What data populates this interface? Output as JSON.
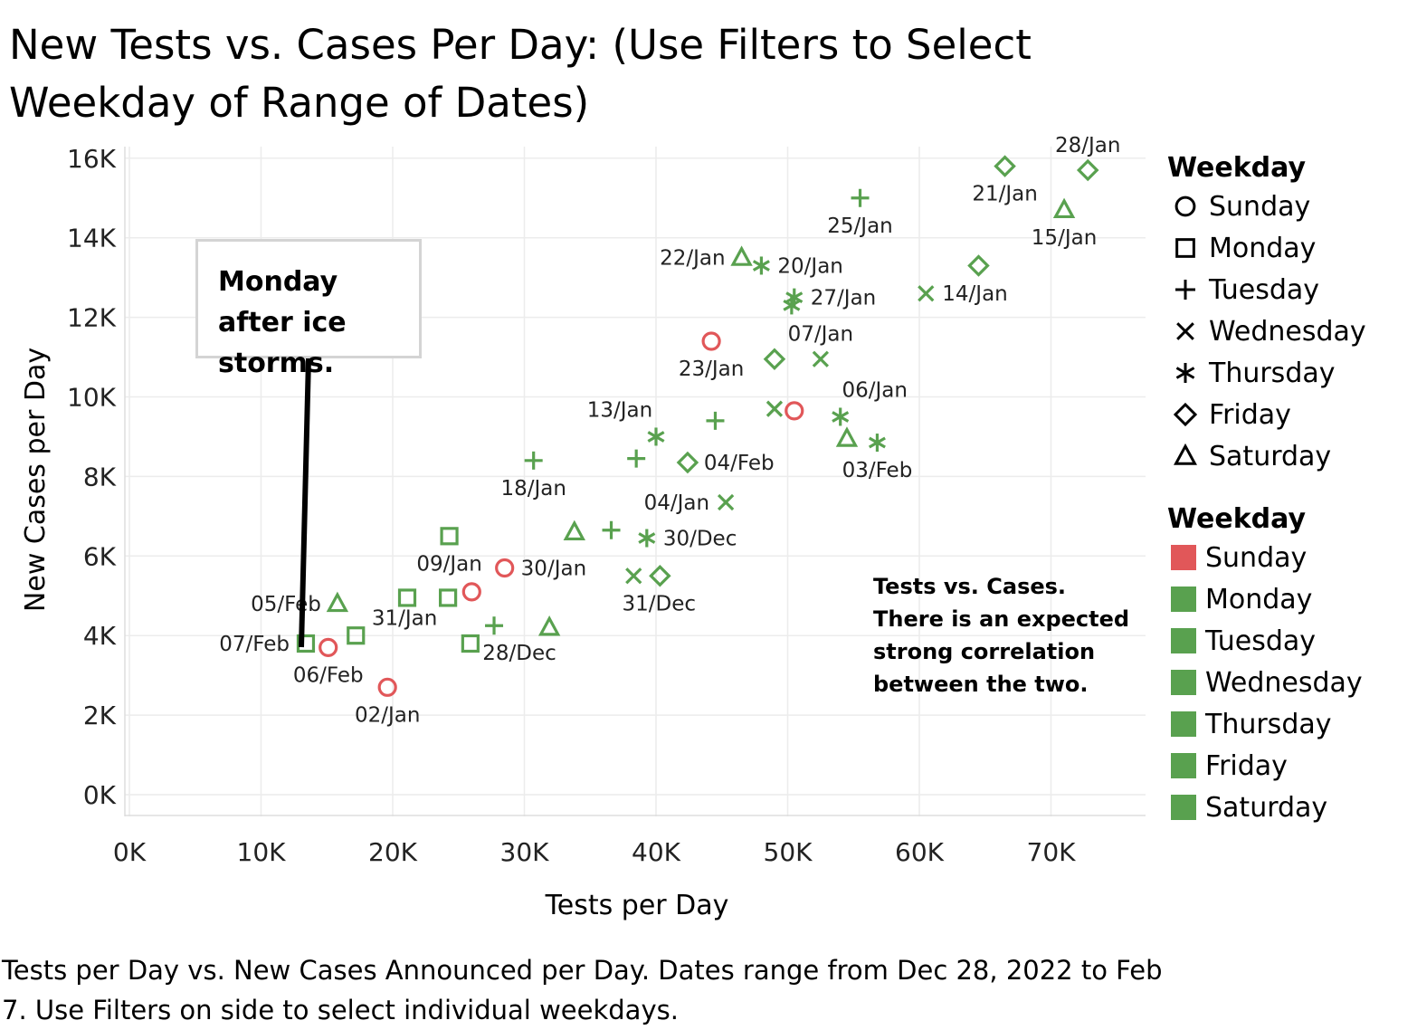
{
  "title": "New Tests vs. Cases Per Day:  (Use Filters  to Select Weekday of Range of Dates)",
  "caption": "Tests per Day vs. New Cases Announced per Day.  Dates range from  Dec 28, 2022 to Feb 7.  Use Filters on side to select individual weekdays.",
  "annotation_box": "Monday after ice storms.",
  "note": "Tests vs. Cases.  There is an expected strong correlation between the two.",
  "colors": {
    "sunday": "#e15759",
    "other": "#59a14f",
    "grid": "#ececec",
    "axis_text": "#222222"
  },
  "legend_shape": {
    "title": "Weekday",
    "items": [
      {
        "label": "Sunday",
        "icon": "circle-icon"
      },
      {
        "label": "Monday",
        "icon": "square-icon"
      },
      {
        "label": "Tuesday",
        "icon": "plus-icon"
      },
      {
        "label": "Wednesday",
        "icon": "cross-icon"
      },
      {
        "label": "Thursday",
        "icon": "asterisk-icon"
      },
      {
        "label": "Friday",
        "icon": "diamond-icon"
      },
      {
        "label": "Saturday",
        "icon": "triangle-icon"
      }
    ]
  },
  "legend_color": {
    "title": "Weekday",
    "items": [
      {
        "label": "Sunday",
        "color": "#e15759"
      },
      {
        "label": "Monday",
        "color": "#59a14f"
      },
      {
        "label": "Tuesday",
        "color": "#59a14f"
      },
      {
        "label": "Wednesday",
        "color": "#59a14f"
      },
      {
        "label": "Thursday",
        "color": "#59a14f"
      },
      {
        "label": "Friday",
        "color": "#59a14f"
      },
      {
        "label": "Saturday",
        "color": "#59a14f"
      }
    ]
  },
  "chart_data": {
    "type": "scatter",
    "xlabel": "Tests per Day",
    "ylabel": "New Cases per Day",
    "xlim": [
      0,
      77000
    ],
    "ylim": [
      -500,
      16800
    ],
    "x_ticks": [
      {
        "v": 0,
        "label": "0K"
      },
      {
        "v": 10000,
        "label": "10K"
      },
      {
        "v": 20000,
        "label": "20K"
      },
      {
        "v": 30000,
        "label": "30K"
      },
      {
        "v": 40000,
        "label": "40K"
      },
      {
        "v": 50000,
        "label": "50K"
      },
      {
        "v": 60000,
        "label": "60K"
      },
      {
        "v": 70000,
        "label": "70K"
      }
    ],
    "y_ticks": [
      {
        "v": 0,
        "label": "0K"
      },
      {
        "v": 2000,
        "label": "2K"
      },
      {
        "v": 4000,
        "label": "4K"
      },
      {
        "v": 6000,
        "label": "6K"
      },
      {
        "v": 8000,
        "label": "8K"
      },
      {
        "v": 10000,
        "label": "10K"
      },
      {
        "v": 12000,
        "label": "12K"
      },
      {
        "v": 14000,
        "label": "14K"
      },
      {
        "v": 16000,
        "label": "16K"
      }
    ],
    "grid": true,
    "legend_position": "right",
    "points": [
      {
        "x": 72800,
        "y": 15700,
        "day": "Friday",
        "label": "28/Jan",
        "lpos": "above"
      },
      {
        "x": 66500,
        "y": 15800,
        "day": "Friday",
        "label": "21/Jan",
        "lpos": "below"
      },
      {
        "x": 71000,
        "y": 14700,
        "day": "Saturday",
        "label": "15/Jan",
        "lpos": "below"
      },
      {
        "x": 55500,
        "y": 15000,
        "day": "Tuesday",
        "label": "25/Jan",
        "lpos": "below"
      },
      {
        "x": 64500,
        "y": 13300,
        "day": "Friday",
        "label": "",
        "lpos": "none"
      },
      {
        "x": 60500,
        "y": 12600,
        "day": "Wednesday",
        "label": "14/Jan",
        "lpos": "right"
      },
      {
        "x": 46500,
        "y": 13500,
        "day": "Saturday",
        "label": "22/Jan",
        "lpos": "left"
      },
      {
        "x": 48000,
        "y": 13300,
        "day": "Thursday",
        "label": "20/Jan",
        "lpos": "right"
      },
      {
        "x": 50500,
        "y": 12500,
        "day": "Thursday",
        "label": "27/Jan",
        "lpos": "right"
      },
      {
        "x": 50300,
        "y": 12300,
        "day": "Thursday",
        "label": "",
        "lpos": "none"
      },
      {
        "x": 44200,
        "y": 11400,
        "day": "Sunday",
        "label": "23/Jan",
        "lpos": "below"
      },
      {
        "x": 49000,
        "y": 10950,
        "day": "Friday",
        "label": "",
        "lpos": "none"
      },
      {
        "x": 52500,
        "y": 10950,
        "day": "Wednesday",
        "label": "07/Jan",
        "lpos": "above"
      },
      {
        "x": 50500,
        "y": 9650,
        "day": "Sunday",
        "label": "",
        "lpos": "none"
      },
      {
        "x": 49000,
        "y": 9700,
        "day": "Wednesday",
        "label": "",
        "lpos": "none"
      },
      {
        "x": 54000,
        "y": 9500,
        "day": "Thursday",
        "label": "06/Jan",
        "lpos": "above-right"
      },
      {
        "x": 44500,
        "y": 9400,
        "day": "Tuesday",
        "label": "",
        "lpos": "none"
      },
      {
        "x": 40000,
        "y": 9000,
        "day": "Thursday",
        "label": "13/Jan",
        "lpos": "above-left"
      },
      {
        "x": 54500,
        "y": 8950,
        "day": "Saturday",
        "label": "",
        "lpos": "none"
      },
      {
        "x": 56800,
        "y": 8850,
        "day": "Thursday",
        "label": "03/Feb",
        "lpos": "below"
      },
      {
        "x": 30700,
        "y": 8400,
        "day": "Tuesday",
        "label": "18/Jan",
        "lpos": "below"
      },
      {
        "x": 38500,
        "y": 8450,
        "day": "Tuesday",
        "label": "",
        "lpos": "none"
      },
      {
        "x": 42400,
        "y": 8350,
        "day": "Friday",
        "label": "04/Feb",
        "lpos": "right"
      },
      {
        "x": 45300,
        "y": 7350,
        "day": "Wednesday",
        "label": "04/Jan",
        "lpos": "left"
      },
      {
        "x": 24300,
        "y": 6500,
        "day": "Monday",
        "label": "09/Jan",
        "lpos": "below"
      },
      {
        "x": 33800,
        "y": 6600,
        "day": "Saturday",
        "label": "",
        "lpos": "none"
      },
      {
        "x": 36600,
        "y": 6650,
        "day": "Tuesday",
        "label": "",
        "lpos": "none"
      },
      {
        "x": 39300,
        "y": 6450,
        "day": "Thursday",
        "label": "30/Dec",
        "lpos": "right"
      },
      {
        "x": 28500,
        "y": 5700,
        "day": "Sunday",
        "label": "30/Jan",
        "lpos": "right"
      },
      {
        "x": 38300,
        "y": 5500,
        "day": "Wednesday",
        "label": "31/Dec",
        "lpos": "below-right"
      },
      {
        "x": 40300,
        "y": 5500,
        "day": "Friday",
        "label": "",
        "lpos": "none"
      },
      {
        "x": 26000,
        "y": 5100,
        "day": "Sunday",
        "label": "",
        "lpos": "none"
      },
      {
        "x": 21100,
        "y": 4950,
        "day": "Monday",
        "label": "",
        "lpos": "none"
      },
      {
        "x": 24200,
        "y": 4950,
        "day": "Monday",
        "label": "31/Jan",
        "lpos": "below-left"
      },
      {
        "x": 15800,
        "y": 4800,
        "day": "Saturday",
        "label": "05/Feb",
        "lpos": "left"
      },
      {
        "x": 27700,
        "y": 4250,
        "day": "Tuesday",
        "label": "28/Dec",
        "lpos": "below-right"
      },
      {
        "x": 31900,
        "y": 4200,
        "day": "Saturday",
        "label": "",
        "lpos": "none"
      },
      {
        "x": 17200,
        "y": 4000,
        "day": "Monday",
        "label": "",
        "lpos": "none"
      },
      {
        "x": 13400,
        "y": 3800,
        "day": "Monday",
        "label": "07/Feb",
        "lpos": "left"
      },
      {
        "x": 15100,
        "y": 3700,
        "day": "Sunday",
        "label": "06/Feb",
        "lpos": "below"
      },
      {
        "x": 25900,
        "y": 3800,
        "day": "Monday",
        "label": "",
        "lpos": "none"
      },
      {
        "x": 19600,
        "y": 2700,
        "day": "Sunday",
        "label": "02/Jan",
        "lpos": "below"
      }
    ]
  }
}
